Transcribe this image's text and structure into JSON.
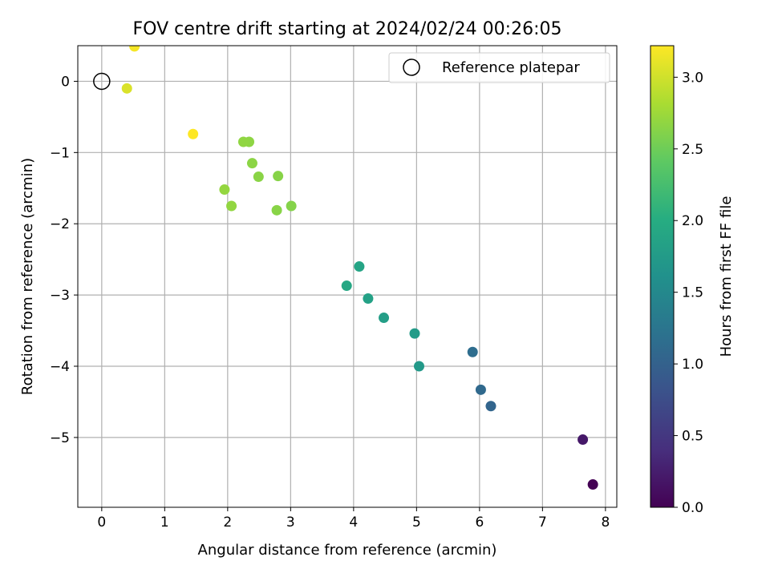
{
  "chart_data": {
    "type": "scatter",
    "title": "FOV centre drift starting at 2024/02/24 00:26:05",
    "xlabel": "Angular distance from reference (arcmin)",
    "ylabel": "Rotation from reference (arcmin)",
    "xlim": [
      -0.38,
      8.18
    ],
    "ylim": [
      -5.98,
      0.5
    ],
    "xticks": [
      0,
      1,
      2,
      3,
      4,
      5,
      6,
      7,
      8
    ],
    "yticks": [
      0,
      -1,
      -2,
      -3,
      -4,
      -5
    ],
    "xtick_labels": [
      "0",
      "1",
      "2",
      "3",
      "4",
      "5",
      "6",
      "7",
      "8"
    ],
    "ytick_labels": [
      "0",
      "−1",
      "−2",
      "−3",
      "−4",
      "−5"
    ],
    "grid": true,
    "legend": {
      "position": "top-right",
      "entries": [
        {
          "label": "Reference platepar",
          "marker": "open-circle"
        }
      ]
    },
    "reference_point": {
      "x": 0,
      "y": 0
    },
    "colorbar": {
      "label": "Hours from first FF file",
      "min": 0.0,
      "max": 3.22,
      "ticks": [
        0.0,
        0.5,
        1.0,
        1.5,
        2.0,
        2.5,
        3.0
      ],
      "tick_labels": [
        "0.0",
        "0.5",
        "1.0",
        "1.5",
        "2.0",
        "2.5",
        "3.0"
      ],
      "colormap": "viridis"
    },
    "points": [
      {
        "x": 7.8,
        "y": -5.66,
        "hours": 0.0
      },
      {
        "x": 7.64,
        "y": -5.03,
        "hours": 0.2
      },
      {
        "x": 6.18,
        "y": -4.56,
        "hours": 1.05
      },
      {
        "x": 6.02,
        "y": -4.33,
        "hours": 1.1
      },
      {
        "x": 5.89,
        "y": -3.8,
        "hours": 1.15
      },
      {
        "x": 5.04,
        "y": -4.0,
        "hours": 1.72
      },
      {
        "x": 4.97,
        "y": -3.54,
        "hours": 1.76
      },
      {
        "x": 4.48,
        "y": -3.32,
        "hours": 1.8
      },
      {
        "x": 4.23,
        "y": -3.05,
        "hours": 1.84
      },
      {
        "x": 4.09,
        "y": -2.6,
        "hours": 1.88
      },
      {
        "x": 3.89,
        "y": -2.87,
        "hours": 1.92
      },
      {
        "x": 3.01,
        "y": -1.75,
        "hours": 2.62
      },
      {
        "x": 2.8,
        "y": -1.33,
        "hours": 2.63
      },
      {
        "x": 2.78,
        "y": -1.81,
        "hours": 2.64
      },
      {
        "x": 2.49,
        "y": -1.34,
        "hours": 2.65
      },
      {
        "x": 2.39,
        "y": -1.15,
        "hours": 2.66
      },
      {
        "x": 2.34,
        "y": -0.85,
        "hours": 2.67
      },
      {
        "x": 2.25,
        "y": -0.85,
        "hours": 2.68
      },
      {
        "x": 2.06,
        "y": -1.75,
        "hours": 2.69
      },
      {
        "x": 1.95,
        "y": -1.52,
        "hours": 2.7
      },
      {
        "x": 1.45,
        "y": -0.74,
        "hours": 3.22
      },
      {
        "x": 0.52,
        "y": 0.49,
        "hours": 3.18
      },
      {
        "x": 0.4,
        "y": -0.1,
        "hours": 3.05
      }
    ]
  }
}
